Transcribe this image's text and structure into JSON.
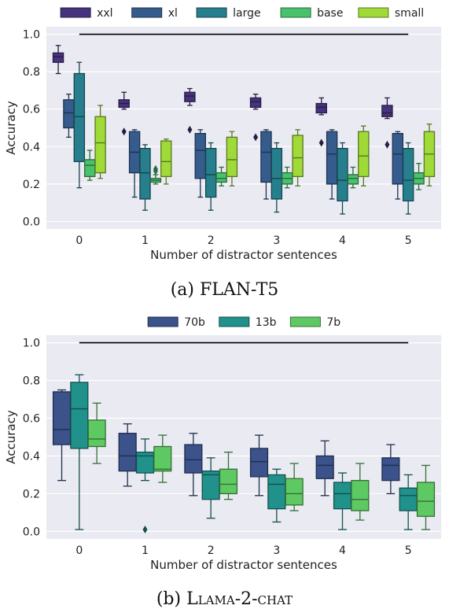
{
  "panel_a": {
    "caption": "(a) FLAN-T5"
  },
  "panel_b": {
    "caption_prefix": "(b) ",
    "caption_name": "Llama-2-chat"
  },
  "chart_data": [
    {
      "type": "box",
      "title": "",
      "xlabel": "Number of distractor sentences",
      "ylabel": "Accuracy",
      "categories": [
        "0",
        "1",
        "2",
        "3",
        "4",
        "5"
      ],
      "ylim": [
        -0.04,
        1.04
      ],
      "yticks": [
        0.0,
        0.2,
        0.4,
        0.6,
        0.8,
        1.0
      ],
      "grid": true,
      "legend": "top",
      "reference_line": {
        "y": 1.0,
        "from": "0",
        "to": "5",
        "color": "#000000"
      },
      "series": [
        {
          "name": "xxl",
          "color": "#46337e",
          "boxes": [
            {
              "whislo": 0.79,
              "q1": 0.85,
              "med": 0.88,
              "q3": 0.9,
              "whishi": 0.94,
              "fliers": []
            },
            {
              "whislo": 0.6,
              "q1": 0.61,
              "med": 0.63,
              "q3": 0.65,
              "whishi": 0.69,
              "fliers": [
                0.48
              ]
            },
            {
              "whislo": 0.62,
              "q1": 0.64,
              "med": 0.67,
              "q3": 0.69,
              "whishi": 0.71,
              "fliers": [
                0.49
              ]
            },
            {
              "whislo": 0.6,
              "q1": 0.61,
              "med": 0.64,
              "q3": 0.66,
              "whishi": 0.68,
              "fliers": [
                0.45
              ]
            },
            {
              "whislo": 0.57,
              "q1": 0.58,
              "med": 0.61,
              "q3": 0.63,
              "whishi": 0.66,
              "fliers": [
                0.42
              ]
            },
            {
              "whislo": 0.55,
              "q1": 0.56,
              "med": 0.58,
              "q3": 0.62,
              "whishi": 0.66,
              "fliers": [
                0.41
              ]
            }
          ]
        },
        {
          "name": "xl",
          "color": "#365c8d",
          "boxes": [
            {
              "whislo": 0.45,
              "q1": 0.5,
              "med": 0.58,
              "q3": 0.65,
              "whishi": 0.68,
              "fliers": []
            },
            {
              "whislo": 0.13,
              "q1": 0.26,
              "med": 0.37,
              "q3": 0.48,
              "whishi": 0.49,
              "fliers": []
            },
            {
              "whislo": 0.13,
              "q1": 0.23,
              "med": 0.38,
              "q3": 0.47,
              "whishi": 0.49,
              "fliers": []
            },
            {
              "whislo": 0.12,
              "q1": 0.21,
              "med": 0.37,
              "q3": 0.48,
              "whishi": 0.49,
              "fliers": []
            },
            {
              "whislo": 0.12,
              "q1": 0.2,
              "med": 0.36,
              "q3": 0.48,
              "whishi": 0.49,
              "fliers": []
            },
            {
              "whislo": 0.12,
              "q1": 0.2,
              "med": 0.36,
              "q3": 0.47,
              "whishi": 0.48,
              "fliers": []
            }
          ]
        },
        {
          "name": "large",
          "color": "#277f8e",
          "boxes": [
            {
              "whislo": 0.18,
              "q1": 0.32,
              "med": 0.56,
              "q3": 0.79,
              "whishi": 0.85,
              "fliers": []
            },
            {
              "whislo": 0.06,
              "q1": 0.12,
              "med": 0.26,
              "q3": 0.39,
              "whishi": 0.41,
              "fliers": []
            },
            {
              "whislo": 0.06,
              "q1": 0.13,
              "med": 0.25,
              "q3": 0.39,
              "whishi": 0.42,
              "fliers": []
            },
            {
              "whislo": 0.05,
              "q1": 0.12,
              "med": 0.23,
              "q3": 0.39,
              "whishi": 0.42,
              "fliers": []
            },
            {
              "whislo": 0.04,
              "q1": 0.11,
              "med": 0.22,
              "q3": 0.39,
              "whishi": 0.42,
              "fliers": []
            },
            {
              "whislo": 0.04,
              "q1": 0.11,
              "med": 0.22,
              "q3": 0.39,
              "whishi": 0.42,
              "fliers": []
            }
          ]
        },
        {
          "name": "base",
          "color": "#4ac16d",
          "boxes": [
            {
              "whislo": 0.22,
              "q1": 0.24,
              "med": 0.3,
              "q3": 0.33,
              "whishi": 0.38,
              "fliers": []
            },
            {
              "whislo": 0.2,
              "q1": 0.21,
              "med": 0.22,
              "q3": 0.23,
              "whishi": 0.25,
              "fliers": [
                0.27,
                0.28
              ]
            },
            {
              "whislo": 0.19,
              "q1": 0.21,
              "med": 0.23,
              "q3": 0.26,
              "whishi": 0.29,
              "fliers": []
            },
            {
              "whislo": 0.18,
              "q1": 0.2,
              "med": 0.23,
              "q3": 0.26,
              "whishi": 0.29,
              "fliers": []
            },
            {
              "whislo": 0.18,
              "q1": 0.2,
              "med": 0.23,
              "q3": 0.25,
              "whishi": 0.29,
              "fliers": []
            },
            {
              "whislo": 0.17,
              "q1": 0.2,
              "med": 0.23,
              "q3": 0.26,
              "whishi": 0.31,
              "fliers": []
            }
          ]
        },
        {
          "name": "small",
          "color": "#a0da39",
          "boxes": [
            {
              "whislo": 0.23,
              "q1": 0.26,
              "med": 0.42,
              "q3": 0.56,
              "whishi": 0.62,
              "fliers": []
            },
            {
              "whislo": 0.2,
              "q1": 0.24,
              "med": 0.32,
              "q3": 0.43,
              "whishi": 0.44,
              "fliers": []
            },
            {
              "whislo": 0.19,
              "q1": 0.24,
              "med": 0.33,
              "q3": 0.45,
              "whishi": 0.48,
              "fliers": []
            },
            {
              "whislo": 0.19,
              "q1": 0.24,
              "med": 0.34,
              "q3": 0.46,
              "whishi": 0.49,
              "fliers": []
            },
            {
              "whislo": 0.19,
              "q1": 0.24,
              "med": 0.35,
              "q3": 0.48,
              "whishi": 0.51,
              "fliers": []
            },
            {
              "whislo": 0.19,
              "q1": 0.24,
              "med": 0.36,
              "q3": 0.48,
              "whishi": 0.52,
              "fliers": []
            }
          ]
        }
      ]
    },
    {
      "type": "box",
      "title": "",
      "xlabel": "Number of distractor sentences",
      "ylabel": "Accuracy",
      "categories": [
        "0",
        "1",
        "2",
        "3",
        "4",
        "5"
      ],
      "ylim": [
        -0.04,
        1.04
      ],
      "yticks": [
        0.0,
        0.2,
        0.4,
        0.6,
        0.8,
        1.0
      ],
      "grid": true,
      "legend": "top",
      "reference_line": {
        "y": 1.0,
        "from": "0",
        "to": "5",
        "color": "#000000"
      },
      "series": [
        {
          "name": "70b",
          "color": "#3b528b",
          "boxes": [
            {
              "whislo": 0.27,
              "q1": 0.46,
              "med": 0.54,
              "q3": 0.74,
              "whishi": 0.75,
              "fliers": []
            },
            {
              "whislo": 0.24,
              "q1": 0.32,
              "med": 0.4,
              "q3": 0.52,
              "whishi": 0.57,
              "fliers": []
            },
            {
              "whislo": 0.19,
              "q1": 0.31,
              "med": 0.38,
              "q3": 0.46,
              "whishi": 0.52,
              "fliers": []
            },
            {
              "whislo": 0.19,
              "q1": 0.29,
              "med": 0.37,
              "q3": 0.44,
              "whishi": 0.51,
              "fliers": []
            },
            {
              "whislo": 0.19,
              "q1": 0.28,
              "med": 0.35,
              "q3": 0.4,
              "whishi": 0.48,
              "fliers": []
            },
            {
              "whislo": 0.2,
              "q1": 0.27,
              "med": 0.35,
              "q3": 0.39,
              "whishi": 0.46,
              "fliers": []
            }
          ]
        },
        {
          "name": "13b",
          "color": "#21918c",
          "boxes": [
            {
              "whislo": 0.01,
              "q1": 0.44,
              "med": 0.65,
              "q3": 0.79,
              "whishi": 0.83,
              "fliers": []
            },
            {
              "whislo": 0.27,
              "q1": 0.31,
              "med": 0.4,
              "q3": 0.42,
              "whishi": 0.49,
              "fliers": [
                0.01
              ]
            },
            {
              "whislo": 0.07,
              "q1": 0.17,
              "med": 0.3,
              "q3": 0.32,
              "whishi": 0.39,
              "fliers": []
            },
            {
              "whislo": 0.05,
              "q1": 0.12,
              "med": 0.25,
              "q3": 0.3,
              "whishi": 0.33,
              "fliers": []
            },
            {
              "whislo": 0.01,
              "q1": 0.12,
              "med": 0.2,
              "q3": 0.26,
              "whishi": 0.31,
              "fliers": []
            },
            {
              "whislo": 0.01,
              "q1": 0.11,
              "med": 0.19,
              "q3": 0.23,
              "whishi": 0.3,
              "fliers": []
            }
          ]
        },
        {
          "name": "7b",
          "color": "#5ec962",
          "boxes": [
            {
              "whislo": 0.36,
              "q1": 0.45,
              "med": 0.49,
              "q3": 0.59,
              "whishi": 0.68,
              "fliers": []
            },
            {
              "whislo": 0.26,
              "q1": 0.32,
              "med": 0.33,
              "q3": 0.45,
              "whishi": 0.51,
              "fliers": []
            },
            {
              "whislo": 0.17,
              "q1": 0.2,
              "med": 0.25,
              "q3": 0.33,
              "whishi": 0.42,
              "fliers": []
            },
            {
              "whislo": 0.11,
              "q1": 0.14,
              "med": 0.2,
              "q3": 0.28,
              "whishi": 0.36,
              "fliers": []
            },
            {
              "whislo": 0.06,
              "q1": 0.11,
              "med": 0.17,
              "q3": 0.27,
              "whishi": 0.36,
              "fliers": []
            },
            {
              "whislo": 0.01,
              "q1": 0.08,
              "med": 0.16,
              "q3": 0.26,
              "whishi": 0.35,
              "fliers": []
            }
          ]
        }
      ]
    }
  ]
}
